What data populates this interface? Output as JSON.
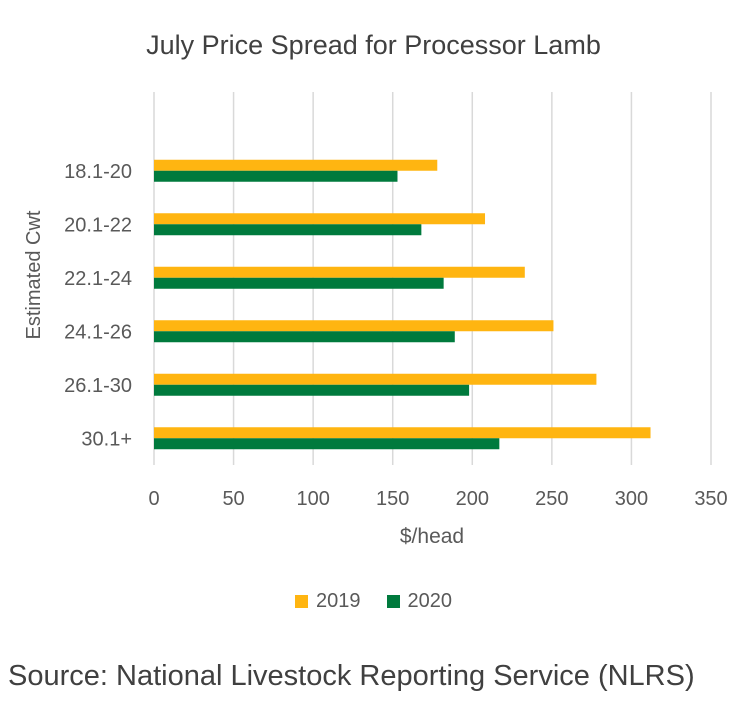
{
  "chart_data": {
    "type": "bar",
    "orientation": "horizontal",
    "title": "July Price Spread for Processor Lamb",
    "xlabel": "$/head",
    "ylabel": "Estimated Cwt",
    "categories": [
      "18.1-20",
      "20.1-22",
      "22.1-24",
      "24.1-26",
      "26.1-30",
      "30.1+"
    ],
    "series": [
      {
        "name": "2019",
        "color": "#FFB511",
        "values": [
          178,
          208,
          233,
          251,
          278,
          312
        ]
      },
      {
        "name": "2020",
        "color": "#007A3D",
        "values": [
          153,
          168,
          182,
          189,
          198,
          217
        ]
      }
    ],
    "xlim": [
      0,
      350
    ],
    "xticks": [
      0,
      50,
      100,
      150,
      200,
      250,
      300,
      350
    ],
    "grid": "vertical",
    "legend_position": "bottom"
  },
  "source": "Source: National Livestock Reporting Service (NLRS)"
}
